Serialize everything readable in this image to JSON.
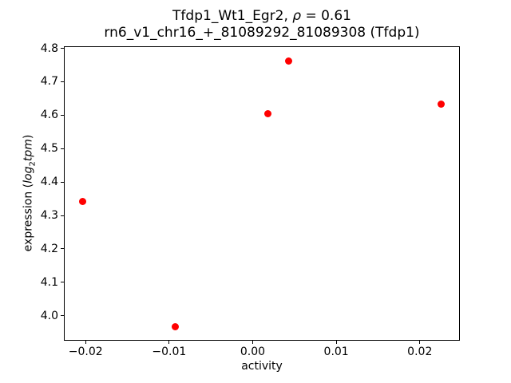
{
  "figure": {
    "title_line1": {
      "prefix": "Tfdp1_Wt1_Egr2, ",
      "rho": "ρ",
      "value": " = 0.61"
    },
    "title_line2": "rn6_v1_chr16_+_81089292_81089308 (Tfdp1)",
    "xlabel": "activity",
    "ylabel": {
      "prefix": "expression (",
      "log": "log",
      "sub": "2",
      "tpm": "tpm",
      "suffix": ")"
    }
  },
  "chart_data": {
    "type": "scatter",
    "title": "Tfdp1_Wt1_Egr2, ρ = 0.61\nrn6_v1_chr16_+_81089292_81089308 (Tfdp1)",
    "xlabel": "activity",
    "ylabel": "expression (log2tpm)",
    "marker": "circle",
    "marker_color": "#ff0000",
    "grid": false,
    "legend": null,
    "points": [
      {
        "x": -0.0204,
        "y": 4.341
      },
      {
        "x": -0.0093,
        "y": 3.967
      },
      {
        "x": 0.0018,
        "y": 4.604
      },
      {
        "x": 0.0043,
        "y": 4.763
      },
      {
        "x": 0.0226,
        "y": 4.632
      }
    ],
    "xlim": [
      -0.0226,
      0.0248
    ],
    "ylim": [
      3.925,
      4.807
    ],
    "xticks": [
      -0.02,
      -0.01,
      0.0,
      0.01,
      0.02
    ],
    "xtick_labels": [
      "−0.02",
      "−0.01",
      "0.00",
      "0.01",
      "0.02"
    ],
    "yticks": [
      4.0,
      4.1,
      4.2,
      4.3,
      4.4,
      4.5,
      4.6,
      4.7,
      4.8
    ],
    "ytick_labels": [
      "4.0",
      "4.1",
      "4.2",
      "4.3",
      "4.4",
      "4.5",
      "4.6",
      "4.7",
      "4.8"
    ]
  }
}
